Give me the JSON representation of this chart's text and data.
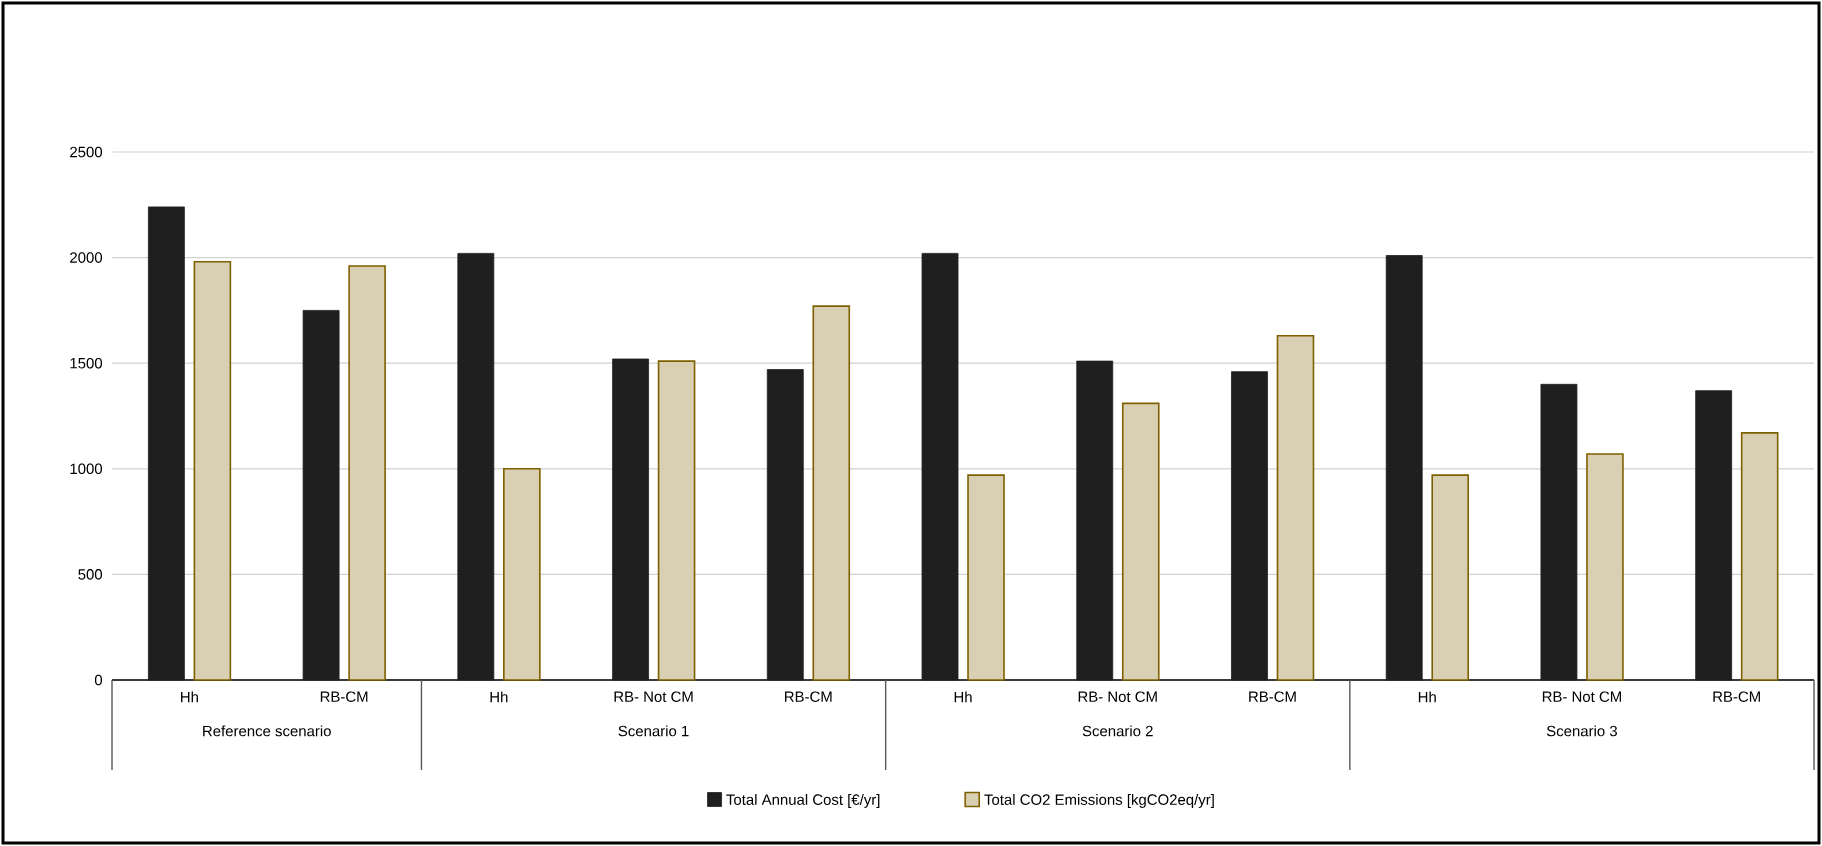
{
  "chart_data": {
    "type": "bar",
    "categories": [
      "Hh",
      "RB-CM",
      "Hh",
      "RB- Not CM",
      "RB-CM",
      "Hh",
      "RB- Not CM",
      "RB-CM",
      "Hh",
      "RB- Not CM",
      "RB-CM"
    ],
    "series": [
      {
        "name": "Total Annual Cost [€/yr]",
        "color": "#1f1f1f",
        "values": [
          2240,
          1750,
          2020,
          1520,
          1470,
          2020,
          1510,
          1460,
          2010,
          1400,
          1370
        ]
      },
      {
        "name": "Total CO2 Emissions [kgCO2eq/yr]",
        "color": "#7f6000",
        "values": [
          1980,
          1960,
          1000,
          1510,
          1770,
          970,
          1310,
          1630,
          970,
          1070,
          1170
        ]
      }
    ],
    "annotations": [
      "Reference scenario",
      "Scenario 1",
      "Scenario 2",
      "Scenario 3"
    ],
    "ylim": [
      0,
      2500
    ],
    "yticks": [
      0,
      500,
      1000,
      1500,
      2000,
      2500
    ],
    "grid": "y",
    "legend": "bottom"
  }
}
